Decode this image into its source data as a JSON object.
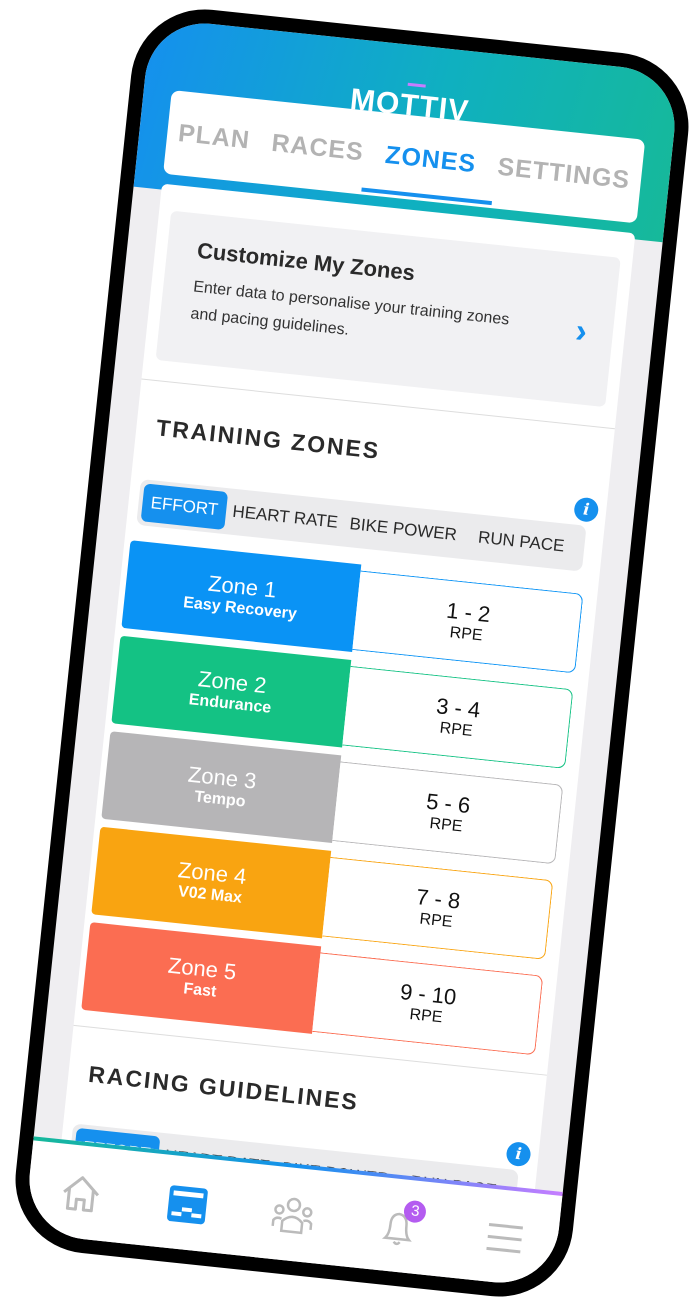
{
  "app": {
    "logo": "MOTTIV"
  },
  "tabs": [
    {
      "label": "PLAN"
    },
    {
      "label": "RACES"
    },
    {
      "label": "ZONES",
      "active": true
    },
    {
      "label": "SETTINGS"
    }
  ],
  "customize": {
    "title": "Customize My Zones",
    "description": "Enter data to personalise your training zones and pacing guidelines.",
    "icon": "chevron-right-icon"
  },
  "training": {
    "title": "TRAINING ZONES",
    "segments": [
      "EFFORT",
      "HEART RATE",
      "BIKE POWER",
      "RUN PACE"
    ],
    "selected": "EFFORT",
    "zones": [
      {
        "name": "Zone 1",
        "desc": "Easy Recovery",
        "value": "1 - 2",
        "unit": "RPE",
        "color": "#0a93f5"
      },
      {
        "name": "Zone 2",
        "desc": "Endurance",
        "value": "3 - 4",
        "unit": "RPE",
        "color": "#14c284"
      },
      {
        "name": "Zone 3",
        "desc": "Tempo",
        "value": "5 - 6",
        "unit": "RPE",
        "color": "#b6b5b7"
      },
      {
        "name": "Zone 4",
        "desc": "V02 Max",
        "value": "7 - 8",
        "unit": "RPE",
        "color": "#f9a411"
      },
      {
        "name": "Zone 5",
        "desc": "Fast",
        "value": "9 - 10",
        "unit": "RPE",
        "color": "#fb6d52"
      }
    ]
  },
  "racing": {
    "title": "RACING GUIDELINES",
    "segments": [
      "EFFORT",
      "HEART RATE",
      "BIKE POWER",
      "RUN PACE"
    ],
    "selected": "EFFORT"
  },
  "nav": {
    "items": [
      "home-icon",
      "plan-icon",
      "community-icon",
      "bell-icon",
      "menu-icon"
    ],
    "active": "plan-icon",
    "notification_count": "3"
  }
}
